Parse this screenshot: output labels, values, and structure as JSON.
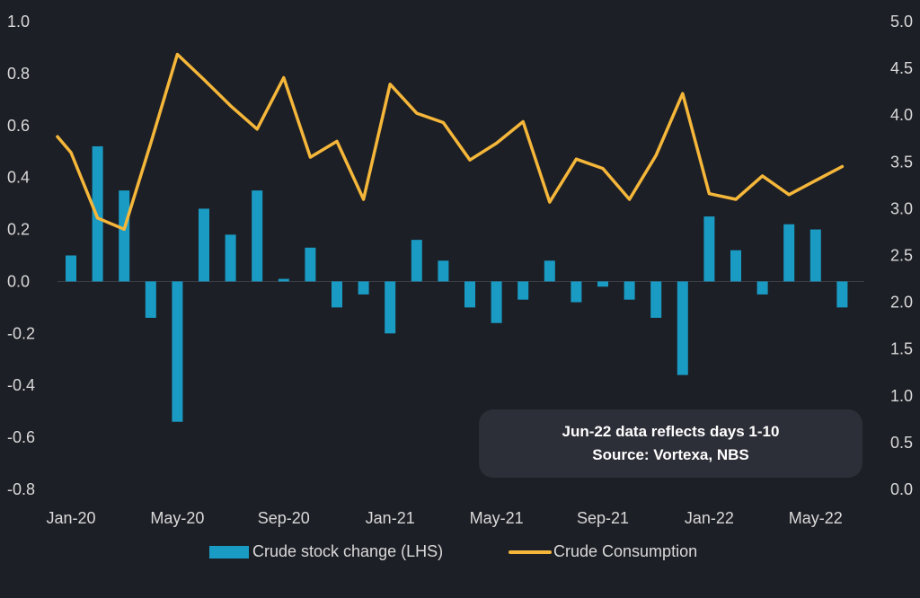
{
  "chart_data": {
    "type": "bar+line",
    "categories": [
      "Jan-20",
      "Feb-20",
      "Mar-20",
      "Apr-20",
      "May-20",
      "Jun-20",
      "Jul-20",
      "Aug-20",
      "Sep-20",
      "Oct-20",
      "Nov-20",
      "Dec-20",
      "Jan-21",
      "Feb-21",
      "Mar-21",
      "Apr-21",
      "May-21",
      "Jun-21",
      "Jul-21",
      "Aug-21",
      "Sep-21",
      "Oct-21",
      "Nov-21",
      "Dec-21",
      "Jan-22",
      "Feb-22",
      "Mar-22",
      "Apr-22",
      "May-22",
      "Jun-22"
    ],
    "x_tick_labels": [
      "Jan-20",
      "May-20",
      "Sep-20",
      "Jan-21",
      "May-21",
      "Sep-21",
      "Jan-22",
      "May-22"
    ],
    "series": [
      {
        "name": "Crude stock change (LHS)",
        "type": "bar",
        "axis": "left",
        "color": "#1a9bc4",
        "values": [
          0.1,
          0.52,
          0.35,
          -0.14,
          -0.54,
          0.28,
          0.18,
          0.35,
          0.01,
          0.13,
          -0.1,
          -0.05,
          -0.2,
          0.16,
          0.08,
          -0.1,
          -0.16,
          -0.07,
          0.08,
          -0.08,
          -0.02,
          -0.07,
          -0.14,
          -0.36,
          0.25,
          0.12,
          -0.05,
          0.22,
          0.2,
          -0.1
        ]
      },
      {
        "name": "Crude Consumption",
        "type": "line",
        "axis": "right",
        "color": "#f5b73a",
        "values": [
          3.6,
          2.9,
          2.78,
          3.7,
          4.65,
          4.38,
          4.1,
          3.85,
          4.4,
          3.55,
          3.72,
          3.1,
          4.33,
          4.02,
          3.92,
          3.52,
          3.7,
          3.93,
          3.07,
          3.53,
          3.43,
          3.1,
          3.57,
          4.23,
          3.16,
          3.1,
          3.35,
          3.15,
          3.3,
          3.45
        ],
        "start_value": 3.77
      }
    ],
    "y_left": {
      "min": -0.8,
      "max": 1.0,
      "step": 0.2,
      "labels": [
        "1.0",
        "0.8",
        "0.6",
        "0.4",
        "0.2",
        "0.0",
        "-0.2",
        "-0.4",
        "-0.6",
        "-0.8"
      ]
    },
    "y_right": {
      "min": 0.0,
      "max": 5.0,
      "step": 0.5,
      "labels": [
        "5.0",
        "4.5",
        "4.0",
        "3.5",
        "3.0",
        "2.5",
        "2.0",
        "1.5",
        "1.0",
        "0.5",
        "0.0"
      ]
    },
    "grid": false,
    "legend_position": "bottom-center"
  },
  "annotation": {
    "line1": "Jun-22 data reflects days 1-10",
    "line2": "Source: Vortexa, NBS"
  },
  "legend": {
    "bar_label": "Crude stock change (LHS)",
    "line_label": "Crude Consumption"
  },
  "colors": {
    "background": "#1d1f26",
    "bar": "#1a9bc4",
    "line": "#f5b73a",
    "axis_text": "#d9d9d9",
    "note_bg": "#2d2f38"
  }
}
